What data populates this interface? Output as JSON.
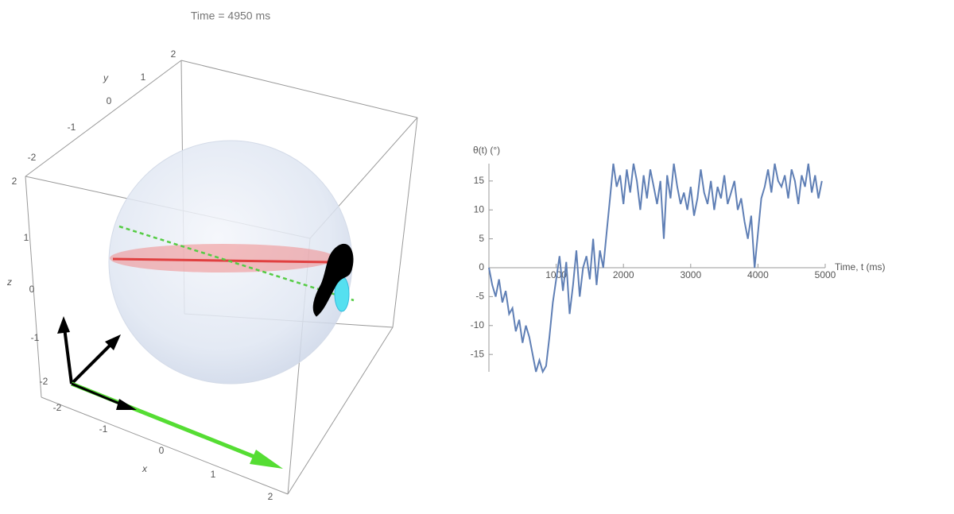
{
  "title": "Time = 4950 ms",
  "plot3d": {
    "x_label": "x",
    "y_label": "y",
    "z_label": "z",
    "xticks": [
      -2,
      -1,
      0,
      1,
      2
    ],
    "yticks": [
      2,
      1,
      0,
      -1,
      -2
    ],
    "zticks": [
      2,
      1,
      0,
      -1,
      -2
    ]
  },
  "chart_data": {
    "type": "line",
    "y_label": "θ(t) (°)",
    "x_label": "Time, t (ms)",
    "xlim": [
      0,
      5000
    ],
    "ylim": [
      -18,
      18
    ],
    "xticks": [
      1000,
      2000,
      3000,
      4000,
      5000
    ],
    "yticks": [
      -15,
      -10,
      -5,
      0,
      5,
      10,
      15
    ],
    "x": [
      0,
      50,
      100,
      150,
      200,
      250,
      300,
      350,
      400,
      450,
      500,
      550,
      600,
      650,
      700,
      750,
      800,
      850,
      900,
      950,
      1000,
      1050,
      1100,
      1150,
      1200,
      1250,
      1300,
      1350,
      1400,
      1450,
      1500,
      1550,
      1600,
      1650,
      1700,
      1750,
      1800,
      1850,
      1900,
      1950,
      2000,
      2050,
      2100,
      2150,
      2200,
      2250,
      2300,
      2350,
      2400,
      2450,
      2500,
      2550,
      2600,
      2650,
      2700,
      2750,
      2800,
      2850,
      2900,
      2950,
      3000,
      3050,
      3100,
      3150,
      3200,
      3250,
      3300,
      3350,
      3400,
      3450,
      3500,
      3550,
      3600,
      3650,
      3700,
      3750,
      3800,
      3850,
      3900,
      3950,
      4000,
      4050,
      4100,
      4150,
      4200,
      4250,
      4300,
      4350,
      4400,
      4450,
      4500,
      4550,
      4600,
      4650,
      4700,
      4750,
      4800,
      4850,
      4900,
      4950
    ],
    "series": [
      {
        "name": "θ(t)",
        "color": "#5f7fb5",
        "values": [
          0,
          -3,
          -5,
          -2,
          -6,
          -4,
          -8,
          -7,
          -11,
          -9,
          -13,
          -10,
          -12,
          -15,
          -18,
          -16,
          -18,
          -17,
          -12,
          -6,
          -2,
          2,
          -4,
          1,
          -8,
          -3,
          3,
          -5,
          0,
          2,
          -2,
          5,
          -3,
          3,
          0,
          6,
          12,
          18,
          14,
          16,
          11,
          17,
          13,
          18,
          15,
          10,
          16,
          12,
          17,
          14,
          11,
          15,
          5,
          16,
          12,
          18,
          14,
          11,
          13,
          10,
          14,
          9,
          12,
          17,
          13,
          11,
          15,
          10,
          14,
          12,
          16,
          11,
          13,
          15,
          10,
          12,
          8,
          5,
          9,
          0,
          6,
          12,
          14,
          17,
          13,
          18,
          15,
          14,
          16,
          12,
          17,
          15,
          11,
          16,
          14,
          18,
          13,
          16,
          12,
          15
        ]
      }
    ]
  }
}
